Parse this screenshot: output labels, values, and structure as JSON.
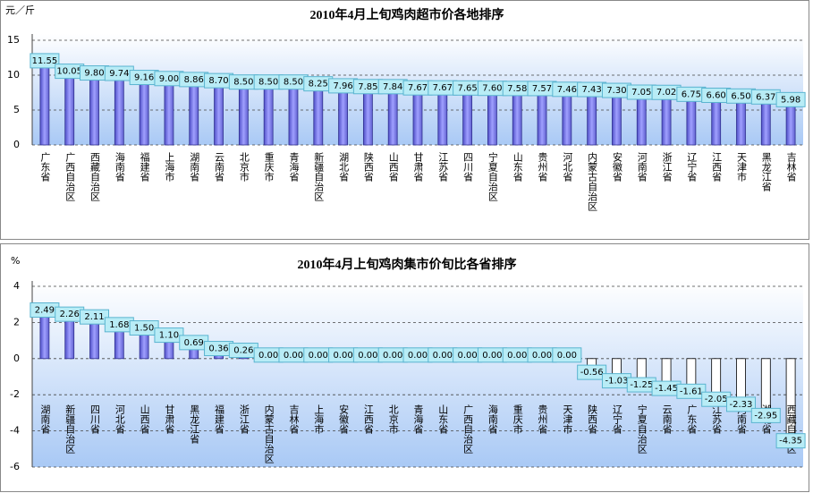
{
  "chart_data": [
    {
      "type": "bar",
      "title": "2010年4月上旬鸡肉超市价各地排序",
      "y_unit": "元／斤",
      "categories": [
        "广东省",
        "广西自治区",
        "西藏自治区",
        "海南省",
        "福建省",
        "上海市",
        "湖南省",
        "云南省",
        "北京市",
        "重庆市",
        "青海省",
        "新疆自治区",
        "湖北省",
        "陕西省",
        "山西省",
        "甘肃省",
        "江苏省",
        "四川省",
        "宁夏自治区",
        "山东省",
        "贵州省",
        "河北省",
        "内蒙古自治区",
        "安徽省",
        "河南省",
        "浙江省",
        "辽宁省",
        "江西省",
        "天津市",
        "黑龙江省",
        "吉林省"
      ],
      "values": [
        11.55,
        10.05,
        9.8,
        9.74,
        9.16,
        9.0,
        8.86,
        8.7,
        8.5,
        8.5,
        8.5,
        8.25,
        7.96,
        7.85,
        7.84,
        7.67,
        7.67,
        7.65,
        7.6,
        7.58,
        7.57,
        7.46,
        7.43,
        7.3,
        7.05,
        7.02,
        6.75,
        6.6,
        6.5,
        6.37,
        5.98
      ],
      "value_labels": [
        "11.55",
        "10.05",
        "9.80",
        "9.74",
        "9.16",
        "9.00",
        "8.86",
        "8.70",
        "8.50",
        "8.50",
        "8.50",
        "8.25",
        "7.96",
        "7.85",
        "7.84",
        "7.67",
        "7.67",
        "7.65",
        "7.60",
        "7.58",
        "7.57",
        "7.46",
        "7.43",
        "7.30",
        "7.05",
        "7.02",
        "6.75",
        "6.60",
        "6.50",
        "6.37",
        "5.98"
      ],
      "color": "#7070e0",
      "ylim": [
        0,
        15
      ],
      "yticks": [
        0,
        5,
        10,
        15
      ],
      "grid": true
    },
    {
      "type": "bar",
      "title": "2010年4月上旬鸡肉集市价旬比各省排序",
      "y_unit": "%",
      "categories": [
        "湖南省",
        "新疆自治区",
        "四川省",
        "河北省",
        "山西省",
        "甘肃省",
        "黑龙江省",
        "福建省",
        "浙江省",
        "内蒙古自治区",
        "吉林省",
        "上海市",
        "安徽省",
        "江西省",
        "北京市",
        "青海省",
        "山东省",
        "广西自治区",
        "海南省",
        "重庆市",
        "贵州省",
        "天津市",
        "陕西省",
        "辽宁省",
        "宁夏自治区",
        "云南省",
        "广东省",
        "江苏省",
        "河南省",
        "湖北省",
        "西藏自治区"
      ],
      "values": [
        2.49,
        2.26,
        2.11,
        1.68,
        1.5,
        1.1,
        0.69,
        0.36,
        0.26,
        0,
        0,
        0,
        0,
        0,
        0,
        0,
        0,
        0,
        0,
        0,
        0,
        0,
        -0.56,
        -1.03,
        -1.25,
        -1.45,
        -1.61,
        -2.05,
        -2.33,
        -2.95,
        -4.35
      ],
      "value_labels": [
        "2.49",
        "2.26",
        "2.11",
        "1.68",
        "1.50",
        "1.10",
        "0.69",
        "0.36",
        "0.26",
        "0.00",
        "0.00",
        "0.00",
        "0.00",
        "0.00",
        "0.00",
        "0.00",
        "0.00",
        "0.00",
        "0.00",
        "0.00",
        "0.00",
        "0.00",
        "-0.56",
        "-1.03",
        "-1.25",
        "-1.45",
        "-1.61",
        "-2.05",
        "-2.33",
        "-2.95",
        "-4.35"
      ],
      "color": "#7070e0",
      "ylim": [
        -6,
        4
      ],
      "yticks": [
        -6,
        -4,
        -2,
        0,
        2,
        4
      ],
      "grid": true
    }
  ]
}
